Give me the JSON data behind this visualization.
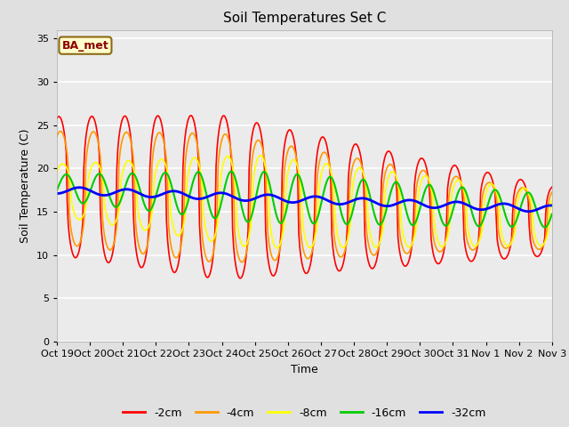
{
  "title": "Soil Temperatures Set C",
  "xlabel": "Time",
  "ylabel": "Soil Temperature (C)",
  "ylim": [
    0,
    36
  ],
  "yticks": [
    0,
    5,
    10,
    15,
    20,
    25,
    30,
    35
  ],
  "legend_label": "BA_met",
  "series_labels": [
    "-2cm",
    "-4cm",
    "-8cm",
    "-16cm",
    "-32cm"
  ],
  "series_colors": [
    "#ff0000",
    "#ff9900",
    "#ffff00",
    "#00cc00",
    "#0000ff"
  ],
  "fig_facecolor": "#e0e0e0",
  "ax_facecolor": "#ebebeb",
  "x_tick_labels": [
    "Oct 19",
    "Oct 20",
    "Oct 21",
    "Oct 22",
    "Oct 23",
    "Oct 24",
    "Oct 25",
    "Oct 26",
    "Oct 27",
    "Oct 28",
    "Oct 29",
    "Oct 30",
    "Oct 31",
    "Nov 1",
    "Nov 2",
    "Nov 3"
  ],
  "num_points": 480
}
